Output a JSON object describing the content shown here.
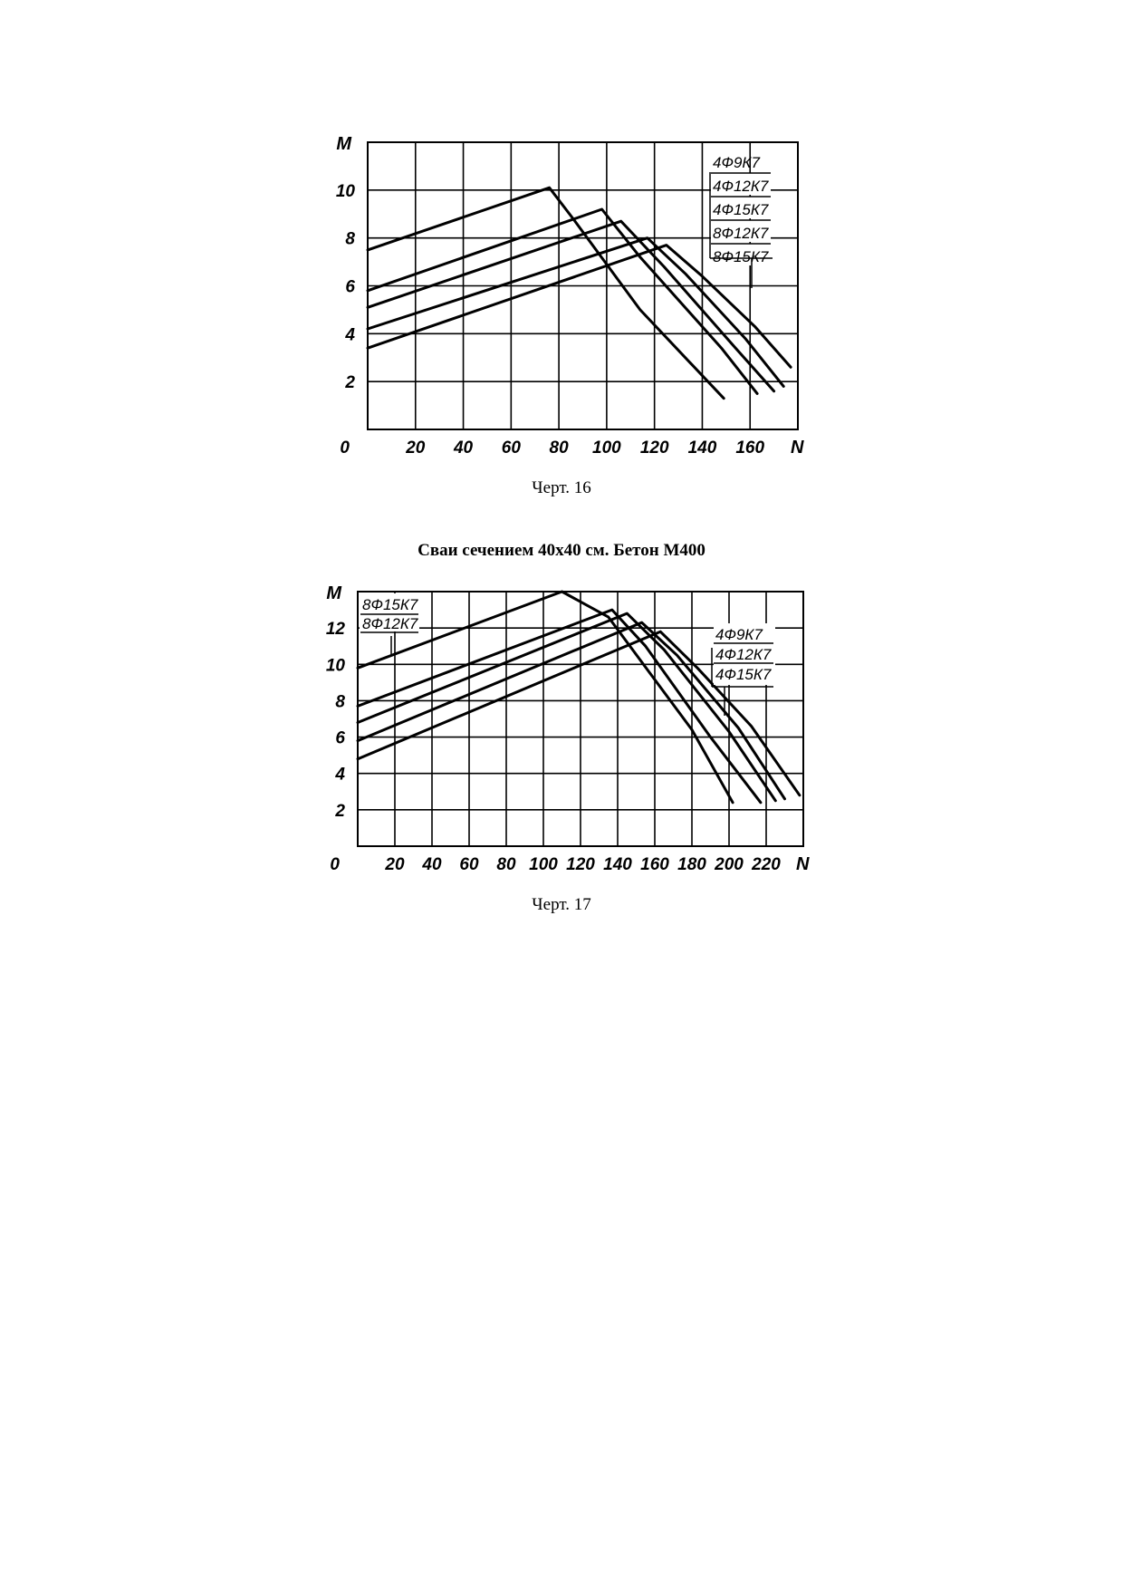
{
  "captions": {
    "chart16": "Черт. 16",
    "chart17": "Черт. 17"
  },
  "heading": "Сваи сечением 40х40 см. Бетон М400",
  "chart_data": [
    {
      "type": "line",
      "xlabel": "N",
      "ylabel": "M",
      "xlim": [
        0,
        180
      ],
      "ylim": [
        0,
        12
      ],
      "x_ticks": [
        0,
        20,
        40,
        60,
        80,
        100,
        120,
        140,
        160
      ],
      "y_ticks": [
        2,
        4,
        6,
        8,
        10
      ],
      "origin_label": "0",
      "grid": true,
      "legend": [
        "4Ф9К7",
        "4Ф12К7",
        "4Ф15К7",
        "8Ф12К7",
        "8Ф15К7"
      ],
      "legend_position": "top-right",
      "series": [
        {
          "points": [
            [
              0,
              7.5
            ],
            [
              76,
              10.1
            ],
            [
              86,
              8.8
            ],
            [
              114,
              5.0
            ],
            [
              149,
              1.3
            ]
          ]
        },
        {
          "points": [
            [
              0,
              5.8
            ],
            [
              98,
              9.2
            ],
            [
              114,
              7.2
            ],
            [
              148,
              3.4
            ],
            [
              163,
              1.5
            ]
          ]
        },
        {
          "points": [
            [
              0,
              5.1
            ],
            [
              106,
              8.7
            ],
            [
              124,
              6.8
            ],
            [
              153,
              3.5
            ],
            [
              170,
              1.6
            ]
          ]
        },
        {
          "points": [
            [
              0,
              4.2
            ],
            [
              117,
              8.0
            ],
            [
              133,
              6.5
            ],
            [
              158,
              3.8
            ],
            [
              174,
              1.8
            ]
          ]
        },
        {
          "points": [
            [
              0,
              3.4
            ],
            [
              125,
              7.7
            ],
            [
              140,
              6.4
            ],
            [
              162,
              4.3
            ],
            [
              177,
              2.6
            ]
          ]
        }
      ]
    },
    {
      "type": "line",
      "xlabel": "N",
      "ylabel": "M",
      "xlim": [
        0,
        240
      ],
      "ylim": [
        0,
        14
      ],
      "x_ticks": [
        0,
        20,
        40,
        60,
        80,
        100,
        120,
        140,
        160,
        180,
        200,
        220
      ],
      "y_ticks": [
        2,
        4,
        6,
        8,
        10,
        12
      ],
      "origin_label": "0",
      "grid": true,
      "legend_left": [
        "8Ф15К7",
        "8Ф12К7"
      ],
      "legend_right": [
        "4Ф9К7",
        "4Ф12К7",
        "4Ф15К7"
      ],
      "series": [
        {
          "points": [
            [
              0,
              9.8
            ],
            [
              110,
              14.0
            ],
            [
              135,
              12.6
            ],
            [
              180,
              6.4
            ],
            [
              202,
              2.4
            ]
          ]
        },
        {
          "points": [
            [
              0,
              7.7
            ],
            [
              137,
              13.0
            ],
            [
              155,
              11.0
            ],
            [
              190,
              6.0
            ],
            [
              217,
              2.4
            ]
          ]
        },
        {
          "points": [
            [
              0,
              6.8
            ],
            [
              145,
              12.8
            ],
            [
              165,
              10.8
            ],
            [
              200,
              6.3
            ],
            [
              225,
              2.5
            ]
          ]
        },
        {
          "points": [
            [
              0,
              5.8
            ],
            [
              153,
              12.3
            ],
            [
              172,
              10.5
            ],
            [
              205,
              6.5
            ],
            [
              230,
              2.6
            ]
          ]
        },
        {
          "points": [
            [
              0,
              4.8
            ],
            [
              163,
              11.8
            ],
            [
              183,
              9.8
            ],
            [
              212,
              6.6
            ],
            [
              238,
              2.8
            ]
          ]
        }
      ]
    }
  ]
}
